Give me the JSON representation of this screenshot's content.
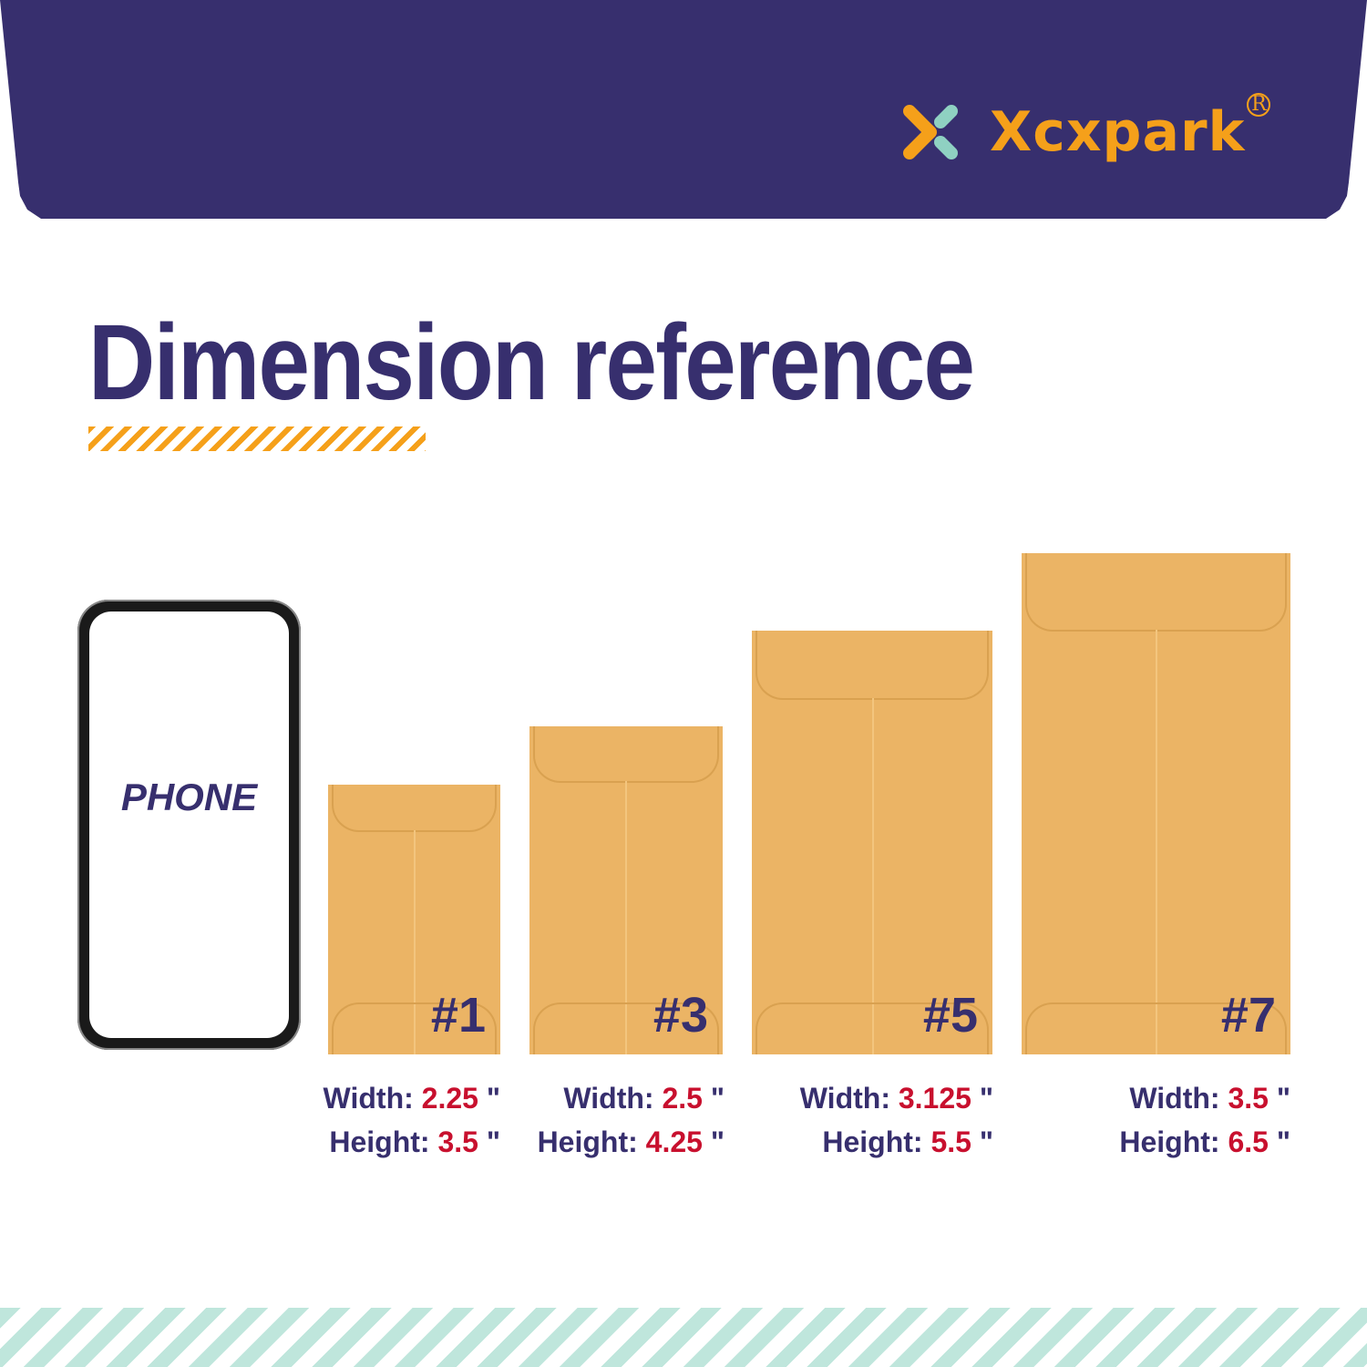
{
  "brand": {
    "name": "Xcxpark",
    "registered": "R"
  },
  "title": "Dimension reference",
  "phone": {
    "label": "PHONE"
  },
  "envelopes": [
    {
      "number": "#1",
      "width_label": "Width:",
      "width": "2.25",
      "height_label": "Height:",
      "height": "3.5",
      "unit": "\""
    },
    {
      "number": "#3",
      "width_label": "Width:",
      "width": "2.5",
      "height_label": "Height:",
      "height": "4.25",
      "unit": "\""
    },
    {
      "number": "#5",
      "width_label": "Width:",
      "width": "3.125",
      "height_label": "Height:",
      "height": "5.5",
      "unit": "\""
    },
    {
      "number": "#7",
      "width_label": "Width:",
      "width": "3.5",
      "height_label": "Height:",
      "height": "6.5",
      "unit": "\""
    }
  ],
  "colors": {
    "navy": "#372f6e",
    "orange": "#f5a01a",
    "mint": "#8fd1c2",
    "envelope": "#ebb465",
    "value_red": "#c8102e"
  }
}
